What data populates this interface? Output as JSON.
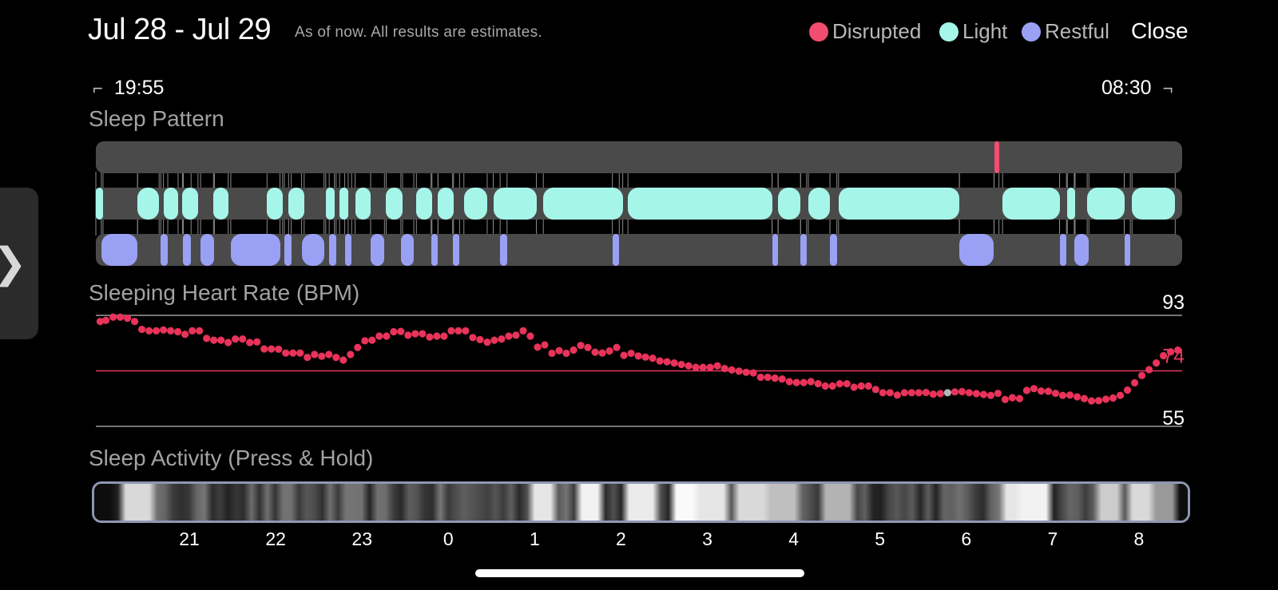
{
  "header": {
    "title": "Jul 28 - Jul 29",
    "subtitle": "As of now. All results are estimates.",
    "close_label": "Close"
  },
  "legend": [
    {
      "label": "Disrupted",
      "color": "#f24d6f"
    },
    {
      "label": "Light",
      "color": "#a6f5e9"
    },
    {
      "label": "Restful",
      "color": "#9aa0f4"
    }
  ],
  "range": {
    "start_time": "19:55",
    "end_time": "08:30",
    "start_hour": 19.917,
    "end_hour": 32.5
  },
  "side_tab": {
    "icon": "chevron-right-icon",
    "glyph": "❯"
  },
  "sleep_pattern": {
    "title": "Sleep Pattern",
    "disrupted": [
      [
        6.322,
        6.378
      ]
    ],
    "light": [
      [
        19.917,
        20.0
      ],
      [
        20.4,
        20.65
      ],
      [
        20.7,
        20.87
      ],
      [
        20.92,
        21.1
      ],
      [
        21.28,
        21.45
      ],
      [
        21.9,
        22.08
      ],
      [
        22.15,
        22.33
      ],
      [
        22.58,
        22.68
      ],
      [
        22.74,
        22.84
      ],
      [
        22.92,
        23.1
      ],
      [
        23.28,
        23.47
      ],
      [
        23.63,
        23.81
      ],
      [
        23.88,
        24.06
      ],
      [
        24.18,
        24.45
      ],
      [
        24.52,
        25.02
      ],
      [
        25.1,
        26.02
      ],
      [
        26.08,
        27.75
      ],
      [
        27.82,
        28.08
      ],
      [
        28.17,
        28.42
      ],
      [
        28.52,
        29.92
      ],
      [
        30.42,
        31.08
      ],
      [
        31.17,
        31.26
      ],
      [
        31.4,
        31.83
      ],
      [
        31.92,
        32.42
      ]
    ],
    "restful": [
      [
        19.98,
        20.4
      ],
      [
        20.67,
        20.75
      ],
      [
        20.93,
        21.02
      ],
      [
        21.13,
        21.29
      ],
      [
        21.48,
        22.05
      ],
      [
        22.1,
        22.18
      ],
      [
        22.3,
        22.56
      ],
      [
        22.62,
        22.7
      ],
      [
        22.8,
        22.88
      ],
      [
        23.1,
        23.26
      ],
      [
        23.45,
        23.6
      ],
      [
        23.8,
        23.88
      ],
      [
        24.05,
        24.13
      ],
      [
        24.6,
        24.68
      ],
      [
        25.9,
        25.98
      ],
      [
        27.75,
        27.82
      ],
      [
        28.08,
        28.15
      ],
      [
        28.42,
        28.5
      ],
      [
        29.92,
        30.32
      ],
      [
        31.08,
        31.16
      ],
      [
        31.25,
        31.42
      ],
      [
        31.83,
        31.9
      ]
    ]
  },
  "heart_rate": {
    "title": "Sleeping Heart Rate (BPM)",
    "max_label": "93",
    "avg_label": "74",
    "min_label": "55",
    "max": 93,
    "avg": 74,
    "min": 55,
    "highlight_index": 118
  },
  "activity": {
    "title": "Sleep Activity (Press & Hold)"
  },
  "x_axis": {
    "ticks": [
      {
        "label": "21",
        "hour": 21
      },
      {
        "label": "22",
        "hour": 22
      },
      {
        "label": "23",
        "hour": 23
      },
      {
        "label": "0",
        "hour": 24
      },
      {
        "label": "1",
        "hour": 25
      },
      {
        "label": "2",
        "hour": 26
      },
      {
        "label": "3",
        "hour": 27
      },
      {
        "label": "4",
        "hour": 28
      },
      {
        "label": "5",
        "hour": 29
      },
      {
        "label": "6",
        "hour": 30
      },
      {
        "label": "7",
        "hour": 31
      },
      {
        "label": "8",
        "hour": 32
      }
    ]
  },
  "chart_data": {
    "type": "scatter",
    "title": "Sleeping Heart Rate (BPM)",
    "xlabel": "",
    "ylabel": "",
    "ylim": [
      55,
      93
    ],
    "x": [
      "19:58",
      "20:02",
      "20:07",
      "20:12",
      "20:17",
      "20:22",
      "20:27",
      "20:32",
      "20:37",
      "20:42",
      "20:47",
      "20:52",
      "20:57",
      "21:02",
      "21:07",
      "21:12",
      "21:17",
      "21:22",
      "21:27",
      "21:32",
      "21:37",
      "21:42",
      "21:47",
      "21:52",
      "21:57",
      "22:02",
      "22:07",
      "22:12",
      "22:17",
      "22:22",
      "22:27",
      "22:32",
      "22:37",
      "22:42",
      "22:47",
      "22:52",
      "22:57",
      "23:02",
      "23:07",
      "23:12",
      "23:17",
      "23:22",
      "23:27",
      "23:32",
      "23:37",
      "23:42",
      "23:47",
      "23:52",
      "23:57",
      "00:02",
      "00:07",
      "00:12",
      "00:17",
      "00:22",
      "00:27",
      "00:32",
      "00:37",
      "00:42",
      "00:47",
      "00:52",
      "00:57",
      "01:02",
      "01:07",
      "01:12",
      "01:17",
      "01:22",
      "01:27",
      "01:32",
      "01:37",
      "01:42",
      "01:47",
      "01:52",
      "01:57",
      "02:02",
      "02:07",
      "02:12",
      "02:17",
      "02:22",
      "02:27",
      "02:32",
      "02:37",
      "02:42",
      "02:47",
      "02:52",
      "02:57",
      "03:02",
      "03:07",
      "03:12",
      "03:17",
      "03:22",
      "03:27",
      "03:32",
      "03:37",
      "03:42",
      "03:47",
      "03:52",
      "03:57",
      "04:02",
      "04:07",
      "04:12",
      "04:17",
      "04:22",
      "04:27",
      "04:32",
      "04:37",
      "04:42",
      "04:47",
      "04:52",
      "04:57",
      "05:02",
      "05:07",
      "05:12",
      "05:17",
      "05:22",
      "05:27",
      "05:32",
      "05:37",
      "05:42",
      "05:47",
      "05:52",
      "05:57",
      "06:02",
      "06:07",
      "06:12",
      "06:17",
      "06:22",
      "06:27",
      "06:32",
      "06:37",
      "06:42",
      "06:47",
      "06:52",
      "06:57",
      "07:02",
      "07:07",
      "07:12",
      "07:17",
      "07:22",
      "07:27",
      "07:32",
      "07:37",
      "07:42",
      "07:47",
      "07:52",
      "07:57",
      "08:02",
      "08:07",
      "08:12",
      "08:17",
      "08:22",
      "08:27"
    ],
    "series": [
      {
        "values": [
          90.9,
          91.3,
          92.4,
          92.4,
          92.0,
          90.9,
          88.2,
          87.7,
          87.7,
          88.0,
          87.7,
          87.4,
          86.5,
          87.7,
          87.7,
          85.1,
          84.5,
          84.5,
          83.7,
          84.9,
          84.9,
          83.7,
          83.9,
          81.5,
          81.5,
          81.4,
          80.1,
          80.1,
          80.1,
          78.6,
          79.6,
          79.0,
          79.6,
          78.6,
          77.7,
          79.6,
          82.0,
          84.3,
          84.5,
          85.9,
          85.9,
          87.4,
          87.5,
          86.2,
          86.7,
          86.7,
          85.6,
          85.9,
          85.9,
          87.7,
          87.7,
          87.7,
          85.4,
          84.7,
          83.8,
          84.5,
          84.9,
          85.9,
          86.2,
          87.7,
          85.9,
          82.1,
          82.9,
          80.0,
          80.9,
          80.0,
          81.1,
          82.7,
          82.0,
          80.4,
          80.1,
          80.8,
          82.0,
          79.3,
          80.0,
          79.1,
          78.7,
          78.3,
          77.4,
          77.1,
          76.7,
          76.2,
          75.7,
          75.2,
          75.2,
          75.2,
          75.7,
          74.8,
          74.3,
          73.9,
          73.5,
          73.3,
          71.8,
          71.8,
          71.5,
          71.2,
          70.3,
          70.0,
          70.0,
          70.3,
          69.6,
          68.8,
          68.8,
          69.6,
          69.6,
          68.4,
          68.8,
          68.8,
          67.6,
          66.5,
          66.5,
          65.7,
          66.5,
          66.5,
          66.5,
          66.6,
          66.0,
          66.2,
          66.5,
          66.8,
          66.9,
          66.5,
          66.2,
          65.9,
          65.6,
          66.3,
          64.2,
          64.8,
          64.5,
          67.3,
          67.9,
          67.1,
          67.0,
          66.3,
          65.6,
          65.7,
          65.1,
          64.5,
          63.7,
          63.8,
          64.3,
          64.7,
          65.6,
          67.4,
          69.9,
          72.4,
          74.4,
          76.7,
          79.2,
          80.5,
          81.1
        ]
      }
    ]
  }
}
